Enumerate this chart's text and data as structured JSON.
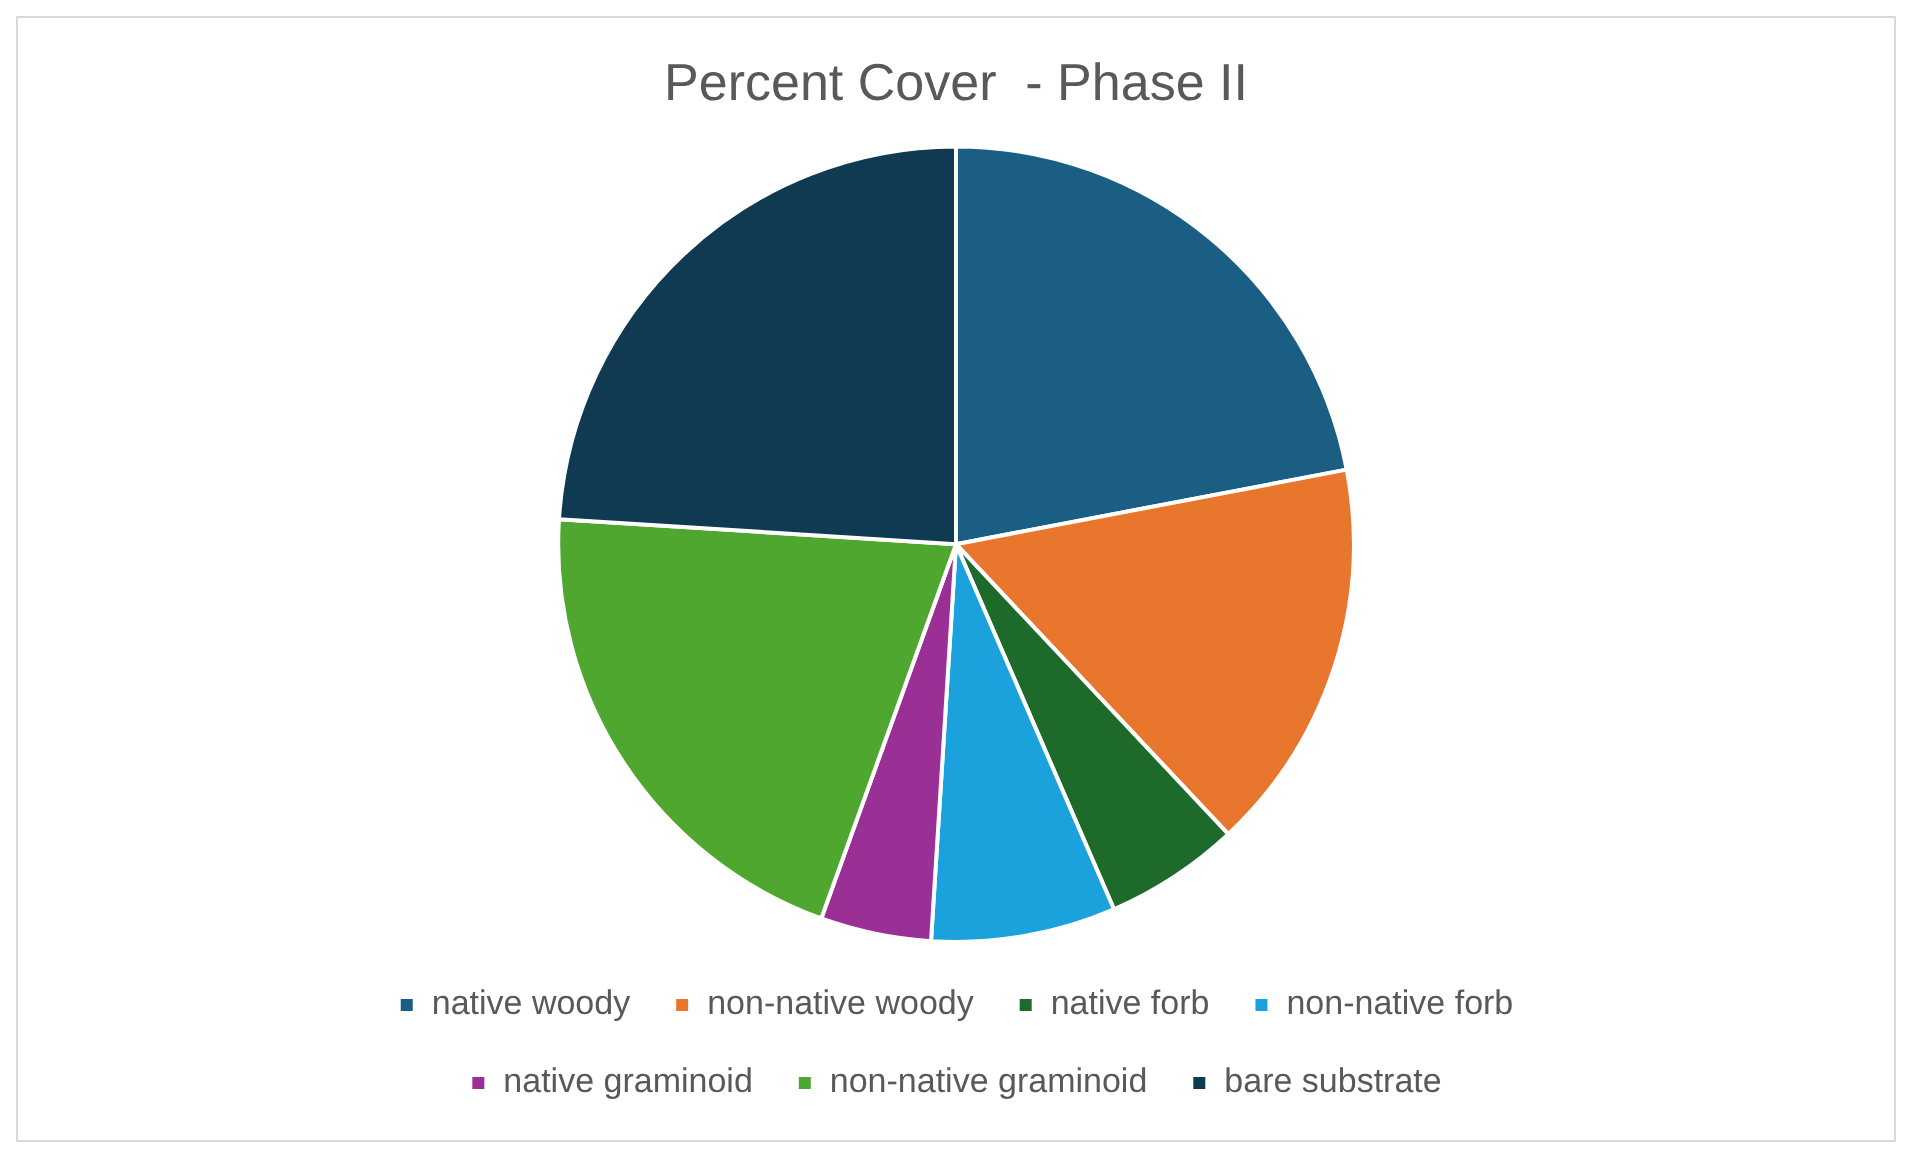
{
  "chart_data": {
    "type": "pie",
    "title": "Percent Cover  - Phase II",
    "categories": [
      "native woody",
      "non-native woody",
      "native forb",
      "non-native forb",
      "native graminoid",
      "non-native graminoid",
      "bare substrate"
    ],
    "values": [
      22,
      16,
      5.5,
      7.5,
      4.5,
      20.5,
      24
    ],
    "colors": [
      "#1b5e84",
      "#e8762d",
      "#1d6a2b",
      "#1ba1db",
      "#9a2f95",
      "#4fa72f",
      "#0f3a51"
    ],
    "legend": "bottom"
  }
}
